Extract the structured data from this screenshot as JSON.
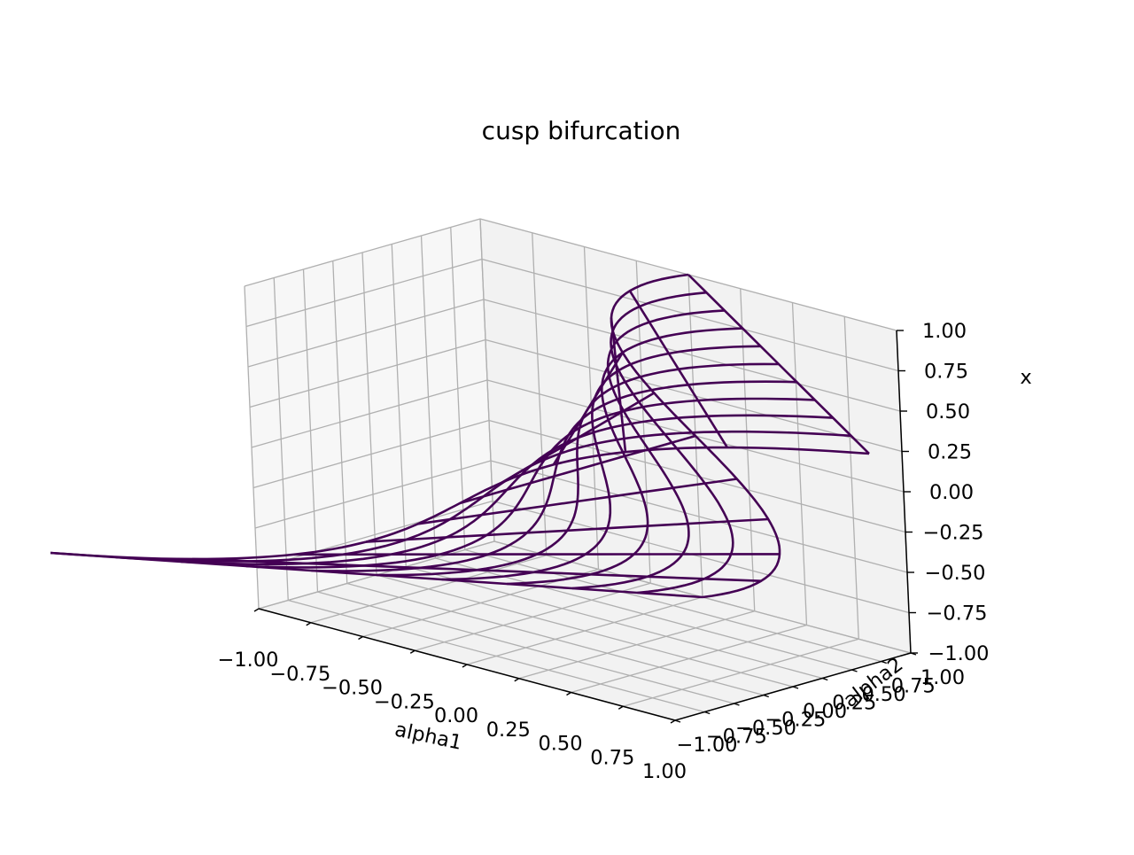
{
  "chart_data": {
    "type": "wireframe-3d",
    "title": "cusp bifurcation",
    "xlabel": "alpha1",
    "ylabel": "alpha2",
    "zlabel": "x",
    "xlim": [
      -1.0,
      1.0
    ],
    "ylim": [
      -1.0,
      1.0
    ],
    "zlim": [
      -1.0,
      1.0
    ],
    "xticks": [
      -1.0,
      -0.75,
      -0.5,
      -0.25,
      0.0,
      0.25,
      0.5,
      0.75,
      1.0
    ],
    "yticks": [
      -1.0,
      -0.75,
      -0.5,
      -0.25,
      0.0,
      0.25,
      0.5,
      0.75,
      1.0
    ],
    "zticks": [
      -1.0,
      -0.75,
      -0.5,
      -0.25,
      0.0,
      0.25,
      0.5,
      0.75,
      1.0
    ],
    "xtick_labels": [
      "−1.00",
      "−0.75",
      "−0.50",
      "−0.25",
      "0.00",
      "0.25",
      "0.50",
      "0.75",
      "1.00"
    ],
    "ytick_labels": [
      "−1.00",
      "−0.75",
      "−0.50",
      "−0.25",
      "0.00",
      "0.25",
      "0.50",
      "0.75",
      "1.00"
    ],
    "ztick_labels": [
      "−1.00",
      "−0.75",
      "−0.50",
      "−0.25",
      "0.00",
      "0.25",
      "0.50",
      "0.75",
      "1.00"
    ],
    "surface": {
      "equation": "alpha1 = x^3 - alpha2*x",
      "parameters": [
        "x",
        "alpha2"
      ],
      "x_range": [
        -1.0,
        1.0
      ],
      "alpha2_range": [
        -1.0,
        1.0
      ],
      "grid_lines": 11,
      "color": "#440154"
    },
    "view": {
      "elev": 30,
      "azim": -60
    },
    "grid": true
  }
}
